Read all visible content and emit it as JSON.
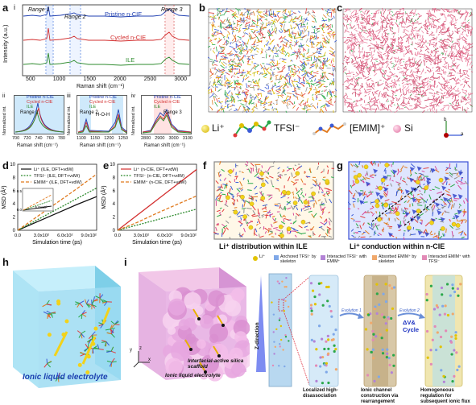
{
  "panel_labels": {
    "a": "a",
    "a_i": "i",
    "a_ii": "ii",
    "a_iii": "iii",
    "a_iv": "iv",
    "b": "b",
    "c": "c",
    "d": "d",
    "e": "e",
    "f": "f",
    "g": "g",
    "h": "h",
    "i": "i"
  },
  "panel_a": {
    "ylabel": "Intensity (a.u.)",
    "xlabel": "Raman shift (cm⁻¹)",
    "ranges": [
      "Range 1",
      "Range 2",
      "Range 3"
    ],
    "legend": [
      "Pristine n-CIE",
      "Cycled n-CIE",
      "ILE"
    ],
    "xticks": [
      "500",
      "1000",
      "1500",
      "2000",
      "2500",
      "3000"
    ],
    "colors": {
      "pristine": "#1f3fb0",
      "cycled": "#d32f2f",
      "ile": "#2e8b2e"
    }
  },
  "panel_a_sub": [
    {
      "id": "ii",
      "title": "Range 1",
      "legend": [
        "Pristine n-CIE",
        "Cycled n-CIE",
        "ILE"
      ],
      "xticks": [
        "700",
        "720",
        "740",
        "760",
        "780"
      ],
      "xlabel": "Raman shift (cm⁻¹)",
      "ylabel": "Normalized int."
    },
    {
      "id": "iii",
      "title": "Range 2",
      "legend": [
        "Pristine n-CIE",
        "Cycled n-CIE",
        "ILE"
      ],
      "xticks": [
        "1100",
        "1150",
        "1200",
        "1250"
      ],
      "xlabel": "Raman shift (cm⁻¹)",
      "ylabel": "Normalized int.",
      "mol": "H-O-H"
    },
    {
      "id": "iv",
      "title": "Range 3",
      "legend": [
        "Pristine n-CIE",
        "Cycled n-CIE",
        "ILE"
      ],
      "xticks": [
        "2800",
        "2900",
        "3000",
        "3100"
      ],
      "xlabel": "Raman shift (cm⁻¹)",
      "ylabel": "Normalized int."
    }
  ],
  "legend_species": {
    "li": "Li⁺",
    "tfsi": "TFSI⁻",
    "emim": "[EMIM]⁺",
    "si": "Si"
  },
  "chart_data": [
    {
      "type": "line",
      "ylabel": "MSD (Å²)",
      "xlabel": "Simulation time (ps)",
      "xticks": [
        "0.0",
        "3.0x10²",
        "6.0x10²",
        "9.0x10²"
      ],
      "yticks": [
        "0",
        "2",
        "4",
        "6",
        "8",
        "10"
      ],
      "xlim": [
        0,
        1000
      ],
      "ylim": [
        0,
        10
      ],
      "series": [
        {
          "name": "Li⁺ (ILE, DFT+vdW)",
          "x": [
            0,
            250,
            500,
            750,
            1000
          ],
          "values": [
            0,
            1.3,
            2.6,
            3.9,
            5.1
          ],
          "color": "#111111"
        },
        {
          "name": "TFSI⁻ (ILE, DFT+vdW)",
          "x": [
            0,
            250,
            500,
            750,
            1000
          ],
          "values": [
            0,
            1.6,
            3.2,
            4.8,
            6.4
          ],
          "color": "#2e8b2e"
        },
        {
          "name": "EMIM⁺ (ILE, DFT+vdW)",
          "x": [
            0,
            250,
            500,
            750,
            1000
          ],
          "values": [
            0,
            2.1,
            4.2,
            6.3,
            8.5
          ],
          "color": "#e07a1f"
        }
      ],
      "inset": {
        "xtick": "6.0x10²",
        "ylabel": "0.5",
        "xlabel": "0.0"
      }
    },
    {
      "type": "line",
      "ylabel": "MSD (Å²)",
      "xlabel": "Simulation time (ps)",
      "xticks": [
        "0.0",
        "3.0x10²",
        "6.0x10²",
        "9.0x10²"
      ],
      "yticks": [
        "0",
        "2",
        "4",
        "6",
        "8",
        "10"
      ],
      "xlim": [
        0,
        1000
      ],
      "ylim": [
        0,
        10
      ],
      "series": [
        {
          "name": "Li⁺ (n-CIE, DFT+vdW)",
          "x": [
            0,
            250,
            500,
            750,
            1000
          ],
          "values": [
            0,
            2.3,
            4.6,
            6.9,
            9.2
          ],
          "color": "#d32f2f"
        },
        {
          "name": "TFSI⁻ (n-CIE, DFT+vdW)",
          "x": [
            0,
            250,
            500,
            750,
            1000
          ],
          "values": [
            0,
            0.8,
            1.6,
            2.4,
            3.2
          ],
          "color": "#2e8b2e"
        },
        {
          "name": "EMIM⁺ (n-CIE, DFT+vdW)",
          "x": [
            0,
            250,
            500,
            750,
            1000
          ],
          "values": [
            0,
            1.2,
            2.6,
            3.9,
            5.2
          ],
          "color": "#e07a1f"
        }
      ]
    }
  ],
  "captions": {
    "f": "Li⁺ distribution within ILE",
    "g": "Li⁺ conduction within n-CIE",
    "h": "Ionic liquid electrolyte",
    "i_scaffold": "Interfacial-active silica scaffold",
    "i_ile": "Ionic liquid electrolyte"
  },
  "scheme": {
    "legend": [
      "Li⁺",
      "Anchored TFSI⁻ by skeleton",
      "Interacted TFSI⁻ with EMIM⁺",
      "Absorbed EMIM⁺ by skeleton",
      "Interacted EMIM⁺ with TFSI⁻"
    ],
    "zdir": "Z-direction",
    "evo1": "Evolution 1",
    "evo2": "Evolution 2",
    "dv": "ΔV&amp; Cycle",
    "dv_line1": "ΔV&",
    "dv_line2": "Cycle",
    "col_caps": [
      "Localized high-disassociation",
      "Ionic channel construction via rearrangement",
      "Homogeneous regulation for subsequent ionic flux"
    ]
  },
  "axes_letters": {
    "x": "x",
    "y": "y",
    "z": "z",
    "a": "a",
    "b": "b"
  }
}
